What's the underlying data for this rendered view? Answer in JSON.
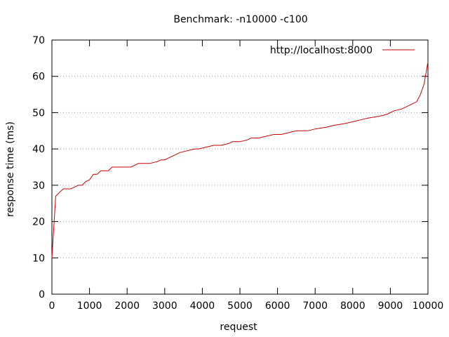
{
  "chart_data": {
    "type": "line",
    "title": "Benchmark: -n10000 -c100",
    "xlabel": "request",
    "ylabel": "response time (ms)",
    "xlim": [
      0,
      10000
    ],
    "ylim": [
      0,
      70
    ],
    "x_ticks": [
      0,
      1000,
      2000,
      3000,
      4000,
      5000,
      6000,
      7000,
      8000,
      9000,
      10000
    ],
    "y_ticks": [
      0,
      10,
      20,
      30,
      40,
      50,
      60,
      70
    ],
    "grid": "horizontal-dotted",
    "legend_position": "top-right",
    "series": [
      {
        "name": "http://localhost:8000",
        "color": "#cc0000",
        "x": [
          0,
          100,
          200,
          300,
          500,
          600,
          700,
          800,
          900,
          1000,
          1100,
          1200,
          1300,
          1500,
          1600,
          1800,
          2000,
          2100,
          2200,
          2300,
          2500,
          2600,
          2800,
          2900,
          3000,
          3100,
          3300,
          3400,
          3600,
          3800,
          3900,
          4100,
          4300,
          4500,
          4700,
          4800,
          5000,
          5200,
          5300,
          5500,
          5700,
          5900,
          6100,
          6300,
          6500,
          6800,
          7000,
          7300,
          7500,
          7800,
          8000,
          8200,
          8400,
          8700,
          8900,
          9100,
          9300,
          9500,
          9700,
          9800,
          9900,
          10000
        ],
        "values": [
          10,
          27,
          28,
          29,
          29,
          29.5,
          30,
          30,
          31,
          31.5,
          33,
          33,
          34,
          34,
          35,
          35,
          35,
          35,
          35.5,
          36,
          36,
          36,
          36.5,
          37,
          37,
          37.5,
          38.5,
          39,
          39.5,
          40,
          40,
          40.5,
          41,
          41,
          41.5,
          42,
          42,
          42.5,
          43,
          43,
          43.5,
          44,
          44,
          44.5,
          45,
          45,
          45.5,
          46,
          46.5,
          47,
          47.5,
          48,
          48.5,
          49,
          49.5,
          50.5,
          51,
          52,
          53,
          55,
          58,
          64
        ]
      }
    ]
  }
}
